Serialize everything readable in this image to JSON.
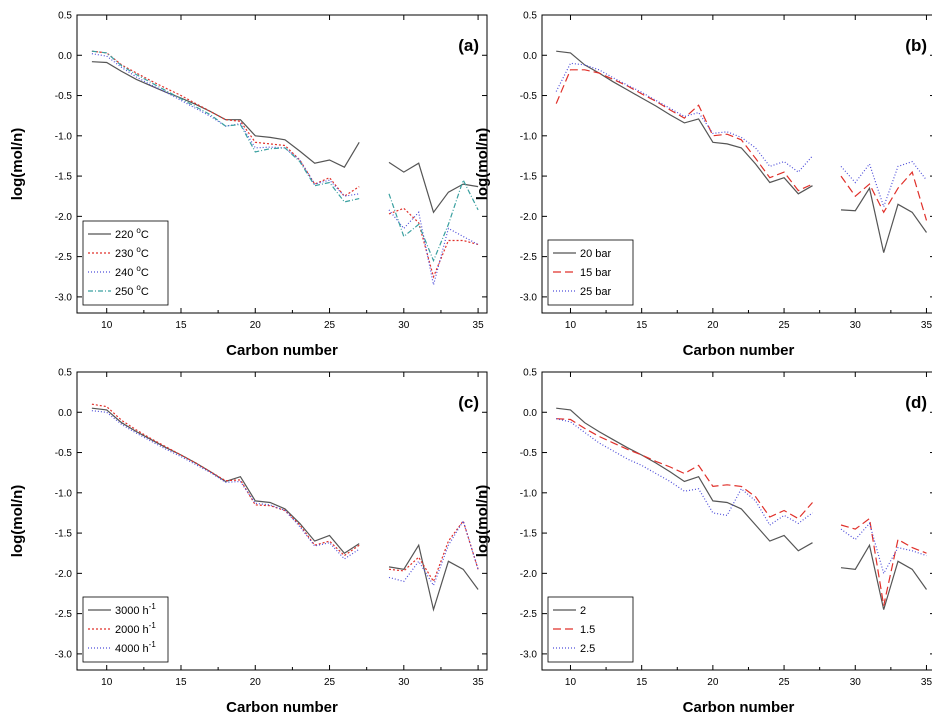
{
  "chart_data": [
    {
      "type": "line",
      "panel_label": "(a)",
      "xlabel": "Carbon number",
      "ylabel": "log(mol/n)",
      "xlim": [
        8,
        35.6
      ],
      "ylim": [
        -3.2,
        0.5
      ],
      "xticks": [
        10,
        15,
        20,
        25,
        30,
        35
      ],
      "yticks": [
        0.5,
        0.0,
        -0.5,
        -1.0,
        -1.5,
        -2.0,
        -2.5,
        -3.0
      ],
      "ytick_labels": [
        "0.5",
        "0.0",
        "-0.5",
        "-1.0",
        "-1.5",
        "-2.0",
        "-2.5",
        "-3.0"
      ],
      "legend_position": "bottom-left",
      "series": [
        {
          "name": "220 °C",
          "legend_main": "220 ",
          "legend_sup": "o",
          "legend_tail": "C",
          "color": "#555555",
          "dash": "",
          "x": [
            9,
            10,
            11,
            12,
            13,
            14,
            15,
            16,
            17,
            18,
            19,
            20,
            21,
            22,
            23,
            24,
            25,
            26,
            27,
            null,
            29,
            30,
            31,
            32,
            33,
            34,
            35
          ],
          "y": [
            -0.08,
            -0.09,
            -0.2,
            -0.3,
            -0.38,
            -0.46,
            -0.53,
            -0.61,
            -0.7,
            -0.8,
            -0.8,
            -1.0,
            -1.02,
            -1.05,
            -1.19,
            -1.34,
            -1.3,
            -1.39,
            -1.08,
            null,
            -1.33,
            -1.45,
            -1.34,
            -1.95,
            -1.7,
            -1.6,
            -1.63
          ]
        },
        {
          "name": "230 °C",
          "legend_main": "230 ",
          "legend_sup": "o",
          "legend_tail": "C",
          "color": "#e0302a",
          "dash": "2,2",
          "x": [
            9,
            10,
            11,
            12,
            13,
            14,
            15,
            16,
            17,
            18,
            19,
            20,
            21,
            22,
            23,
            24,
            25,
            26,
            27,
            null,
            29,
            30,
            31,
            32,
            33,
            34,
            35
          ],
          "y": [
            0.05,
            0.03,
            -0.12,
            -0.22,
            -0.32,
            -0.41,
            -0.5,
            -0.6,
            -0.7,
            -0.8,
            -0.82,
            -1.08,
            -1.1,
            -1.12,
            -1.3,
            -1.6,
            -1.52,
            -1.75,
            -1.63,
            null,
            -1.97,
            -1.9,
            -2.08,
            -2.75,
            -2.3,
            -2.3,
            -2.35
          ]
        },
        {
          "name": "240 °C",
          "legend_main": "240 ",
          "legend_sup": "o",
          "legend_tail": "C",
          "color": "#4d4dd9",
          "dash": "1,2",
          "x": [
            9,
            10,
            11,
            12,
            13,
            14,
            15,
            16,
            17,
            18,
            19,
            20,
            21,
            22,
            23,
            24,
            25,
            26,
            27,
            null,
            29,
            30,
            31,
            32,
            33,
            34,
            35
          ],
          "y": [
            0.02,
            -0.01,
            -0.15,
            -0.27,
            -0.37,
            -0.46,
            -0.56,
            -0.66,
            -0.76,
            -0.88,
            -0.85,
            -1.15,
            -1.14,
            -1.15,
            -1.3,
            -1.6,
            -1.55,
            -1.75,
            -1.72,
            null,
            -1.92,
            -2.15,
            -1.95,
            -2.85,
            -2.15,
            -2.25,
            -2.35
          ]
        },
        {
          "name": "250 °C",
          "legend_main": "250 ",
          "legend_sup": "o",
          "legend_tail": "C",
          "color": "#3aa0a0",
          "dash": "5,2,1,2",
          "x": [
            9,
            10,
            11,
            12,
            13,
            14,
            15,
            16,
            17,
            18,
            19,
            20,
            21,
            22,
            23,
            24,
            25,
            26,
            27,
            null,
            29,
            30,
            31,
            32,
            33,
            34,
            35
          ],
          "y": [
            0.05,
            0.03,
            -0.13,
            -0.24,
            -0.34,
            -0.44,
            -0.54,
            -0.64,
            -0.74,
            -0.88,
            -0.86,
            -1.2,
            -1.16,
            -1.15,
            -1.32,
            -1.62,
            -1.58,
            -1.82,
            -1.78,
            null,
            -1.72,
            -2.25,
            -2.1,
            -2.55,
            -2.1,
            -1.55,
            -1.92
          ]
        }
      ]
    },
    {
      "type": "line",
      "panel_label": "(b)",
      "xlabel": "Carbon number",
      "ylabel": "log(mol/n)",
      "xlim": [
        8,
        35.6
      ],
      "ylim": [
        -3.2,
        0.5
      ],
      "xticks": [
        10,
        15,
        20,
        25,
        30,
        35
      ],
      "yticks": [
        0.5,
        0.0,
        -0.5,
        -1.0,
        -1.5,
        -2.0,
        -2.5,
        -3.0
      ],
      "ytick_labels": [
        "0.5",
        "0.0",
        "-0.5",
        "-1.0",
        "-1.5",
        "-2.0",
        "-2.5",
        "-3.0"
      ],
      "legend_position": "bottom-left",
      "series": [
        {
          "name": "20 bar",
          "legend_main": "20 bar",
          "legend_sup": "",
          "legend_tail": "",
          "color": "#555555",
          "dash": "",
          "x": [
            9,
            10,
            11,
            12,
            13,
            14,
            15,
            16,
            17,
            18,
            19,
            20,
            21,
            22,
            23,
            24,
            25,
            26,
            27,
            null,
            29,
            30,
            31,
            32,
            33,
            34,
            35
          ],
          "y": [
            0.05,
            0.03,
            -0.12,
            -0.22,
            -0.33,
            -0.43,
            -0.53,
            -0.63,
            -0.74,
            -0.84,
            -0.79,
            -1.08,
            -1.1,
            -1.15,
            -1.35,
            -1.58,
            -1.52,
            -1.72,
            -1.62,
            null,
            -1.92,
            -1.93,
            -1.65,
            -2.45,
            -1.85,
            -1.95,
            -2.2
          ]
        },
        {
          "name": "15 bar",
          "legend_main": "15 bar",
          "legend_sup": "",
          "legend_tail": "",
          "color": "#e0302a",
          "dash": "8,4",
          "x": [
            9,
            10,
            11,
            12,
            13,
            14,
            15,
            16,
            17,
            18,
            19,
            20,
            21,
            22,
            23,
            24,
            25,
            26,
            27,
            null,
            29,
            30,
            31,
            32,
            33,
            34,
            35
          ],
          "y": [
            -0.6,
            -0.18,
            -0.18,
            -0.22,
            -0.3,
            -0.38,
            -0.48,
            -0.57,
            -0.68,
            -0.78,
            -0.62,
            -1.0,
            -0.98,
            -1.05,
            -1.28,
            -1.52,
            -1.45,
            -1.68,
            -1.6,
            null,
            -1.5,
            -1.75,
            -1.6,
            -1.95,
            -1.65,
            -1.45,
            -2.05
          ]
        },
        {
          "name": "25 bar",
          "legend_main": "25 bar",
          "legend_sup": "",
          "legend_tail": "",
          "color": "#4d4dd9",
          "dash": "1,2",
          "x": [
            9,
            10,
            11,
            12,
            13,
            14,
            15,
            16,
            17,
            18,
            19,
            20,
            21,
            22,
            23,
            24,
            25,
            26,
            27,
            null,
            29,
            30,
            31,
            32,
            33,
            34,
            35
          ],
          "y": [
            -0.45,
            -0.1,
            -0.12,
            -0.18,
            -0.28,
            -0.37,
            -0.46,
            -0.56,
            -0.66,
            -0.76,
            -0.71,
            -0.97,
            -0.95,
            -1.02,
            -1.15,
            -1.38,
            -1.32,
            -1.45,
            -1.25,
            null,
            -1.38,
            -1.58,
            -1.35,
            -1.88,
            -1.38,
            -1.32,
            -1.55
          ]
        }
      ]
    },
    {
      "type": "line",
      "panel_label": "(c)",
      "xlabel": "Carbon number",
      "ylabel": "log(mol/n)",
      "xlim": [
        8,
        35.6
      ],
      "ylim": [
        -3.2,
        0.5
      ],
      "xticks": [
        10,
        15,
        20,
        25,
        30,
        35
      ],
      "yticks": [
        0.5,
        0.0,
        -0.5,
        -1.0,
        -1.5,
        -2.0,
        -2.5,
        -3.0
      ],
      "ytick_labels": [
        "0.5",
        "0.0",
        "-0.5",
        "-1.0",
        "-1.5",
        "-2.0",
        "-2.5",
        "-3.0"
      ],
      "legend_position": "bottom-left",
      "series": [
        {
          "name": "3000 h⁻¹",
          "legend_main": "3000 h",
          "legend_sup": "-1",
          "legend_tail": "",
          "color": "#555555",
          "dash": "",
          "x": [
            9,
            10,
            11,
            12,
            13,
            14,
            15,
            16,
            17,
            18,
            19,
            20,
            21,
            22,
            23,
            24,
            25,
            26,
            27,
            null,
            29,
            30,
            31,
            32,
            33,
            34,
            35
          ],
          "y": [
            0.05,
            0.03,
            -0.13,
            -0.24,
            -0.34,
            -0.44,
            -0.53,
            -0.63,
            -0.74,
            -0.86,
            -0.8,
            -1.1,
            -1.12,
            -1.2,
            -1.38,
            -1.6,
            -1.53,
            -1.75,
            -1.63,
            null,
            -1.92,
            -1.95,
            -1.65,
            -2.45,
            -1.85,
            -1.95,
            -2.2
          ]
        },
        {
          "name": "2000 h⁻¹",
          "legend_main": "2000 h",
          "legend_sup": "-1",
          "legend_tail": "",
          "color": "#e0302a",
          "dash": "2,2",
          "x": [
            9,
            10,
            11,
            12,
            13,
            14,
            15,
            16,
            17,
            18,
            19,
            20,
            21,
            22,
            23,
            24,
            25,
            26,
            27,
            null,
            29,
            30,
            31,
            32,
            33,
            34,
            35
          ],
          "y": [
            0.1,
            0.07,
            -0.1,
            -0.22,
            -0.33,
            -0.43,
            -0.53,
            -0.63,
            -0.74,
            -0.85,
            -0.84,
            -1.15,
            -1.16,
            -1.22,
            -1.4,
            -1.65,
            -1.6,
            -1.78,
            -1.65,
            null,
            -1.95,
            -1.97,
            -1.8,
            -2.1,
            -1.6,
            -1.35,
            -1.95
          ]
        },
        {
          "name": "4000 h⁻¹",
          "legend_main": "4000 h",
          "legend_sup": "-1",
          "legend_tail": "",
          "color": "#4d4dd9",
          "dash": "1,2",
          "x": [
            9,
            10,
            11,
            12,
            13,
            14,
            15,
            16,
            17,
            18,
            19,
            20,
            21,
            22,
            23,
            24,
            25,
            26,
            27,
            null,
            29,
            30,
            31,
            32,
            33,
            34,
            35
          ],
          "y": [
            0.02,
            0.0,
            -0.15,
            -0.26,
            -0.36,
            -0.46,
            -0.55,
            -0.65,
            -0.75,
            -0.87,
            -0.86,
            -1.13,
            -1.15,
            -1.22,
            -1.42,
            -1.66,
            -1.62,
            -1.82,
            -1.7,
            null,
            -2.05,
            -2.1,
            -1.85,
            -2.15,
            -1.65,
            -1.35,
            -1.95
          ]
        }
      ]
    },
    {
      "type": "line",
      "panel_label": "(d)",
      "xlabel": "Carbon number",
      "ylabel": "log(mol/n)",
      "xlim": [
        8,
        35.6
      ],
      "ylim": [
        -3.2,
        0.5
      ],
      "xticks": [
        10,
        15,
        20,
        25,
        30,
        35
      ],
      "yticks": [
        0.5,
        0.0,
        -0.5,
        -1.0,
        -1.5,
        -2.0,
        -2.5,
        -3.0
      ],
      "ytick_labels": [
        "0.5",
        "0.0",
        "-0.5",
        "-1.0",
        "-1.5",
        "-2.0",
        "-2.5",
        "-3.0"
      ],
      "legend_position": "bottom-left",
      "series": [
        {
          "name": "2",
          "legend_main": "2",
          "legend_sup": "",
          "legend_tail": "",
          "color": "#555555",
          "dash": "",
          "x": [
            9,
            10,
            11,
            12,
            13,
            14,
            15,
            16,
            17,
            18,
            19,
            20,
            21,
            22,
            23,
            24,
            25,
            26,
            27,
            null,
            29,
            30,
            31,
            32,
            33,
            34,
            35
          ],
          "y": [
            0.05,
            0.03,
            -0.13,
            -0.24,
            -0.34,
            -0.44,
            -0.53,
            -0.63,
            -0.74,
            -0.86,
            -0.8,
            -1.1,
            -1.12,
            -1.2,
            -1.4,
            -1.6,
            -1.53,
            -1.72,
            -1.62,
            null,
            -1.93,
            -1.95,
            -1.65,
            -2.45,
            -1.85,
            -1.95,
            -2.2
          ]
        },
        {
          "name": "1.5",
          "legend_main": "1.5",
          "legend_sup": "",
          "legend_tail": "",
          "color": "#e0302a",
          "dash": "8,4",
          "x": [
            9,
            10,
            11,
            12,
            13,
            14,
            15,
            16,
            17,
            18,
            19,
            20,
            21,
            22,
            23,
            24,
            25,
            26,
            27,
            null,
            29,
            30,
            31,
            32,
            33,
            34,
            35
          ],
          "y": [
            -0.08,
            -0.09,
            -0.2,
            -0.3,
            -0.38,
            -0.46,
            -0.53,
            -0.61,
            -0.68,
            -0.76,
            -0.66,
            -0.92,
            -0.9,
            -0.92,
            -1.05,
            -1.3,
            -1.22,
            -1.32,
            -1.12,
            null,
            -1.4,
            -1.45,
            -1.32,
            -2.4,
            -1.58,
            -1.68,
            -1.75
          ]
        },
        {
          "name": "2.5",
          "legend_main": "2.5",
          "legend_sup": "",
          "legend_tail": "",
          "color": "#4d4dd9",
          "dash": "1,2",
          "x": [
            9,
            10,
            11,
            12,
            13,
            14,
            15,
            16,
            17,
            18,
            19,
            20,
            21,
            22,
            23,
            24,
            25,
            26,
            27,
            null,
            29,
            30,
            31,
            32,
            33,
            34,
            35
          ],
          "y": [
            -0.08,
            -0.12,
            -0.25,
            -0.38,
            -0.48,
            -0.58,
            -0.66,
            -0.76,
            -0.86,
            -0.98,
            -0.95,
            -1.25,
            -1.28,
            -0.95,
            -1.1,
            -1.4,
            -1.28,
            -1.38,
            -1.25,
            null,
            -1.45,
            -1.58,
            -1.38,
            -2.0,
            -1.68,
            -1.72,
            -1.78
          ]
        }
      ]
    }
  ]
}
